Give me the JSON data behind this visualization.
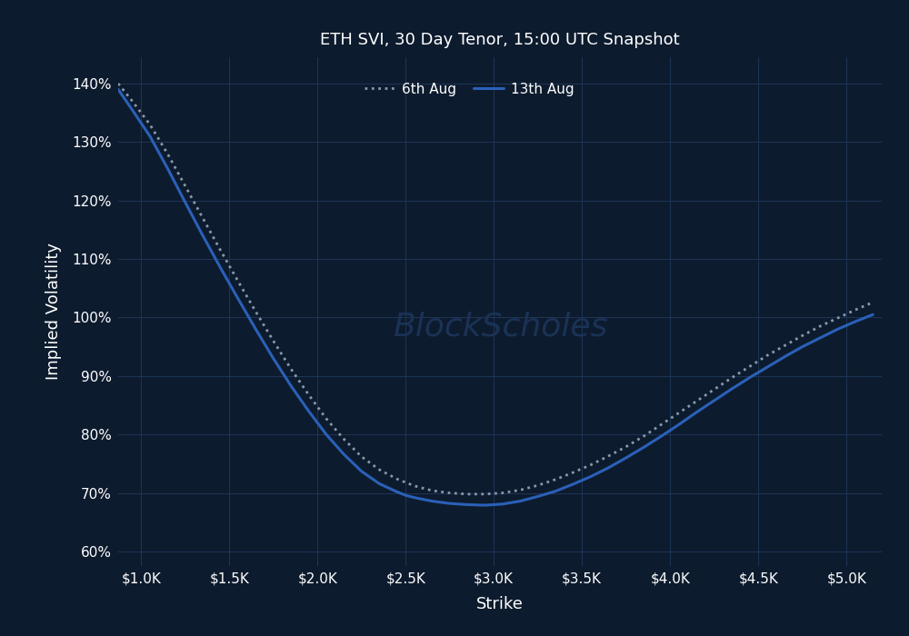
{
  "title": "ETH SVI, 30 Day Tenor, 15:00 UTC Snapshot",
  "xlabel": "Strike",
  "ylabel": "Implied Volatility",
  "background_color": "#0d1b2e",
  "grid_color": "#1e3558",
  "text_color": "#ffffff",
  "watermark": "BlockScholes",
  "x_ticks": [
    1000,
    1500,
    2000,
    2500,
    3000,
    3500,
    4000,
    4500,
    5000
  ],
  "x_tick_labels": [
    "$1.0K",
    "$1.5K",
    "$2.0K",
    "$2.5K",
    "$3.0K",
    "$3.5K",
    "$4.0K",
    "$4.5K",
    "$5.0K"
  ],
  "ylim": [
    0.575,
    1.445
  ],
  "y_ticks": [
    0.6,
    0.7,
    0.8,
    0.9,
    1.0,
    1.1,
    1.2,
    1.3,
    1.4
  ],
  "y_tick_labels": [
    "60%",
    "70%",
    "80%",
    "90%",
    "100%",
    "110%",
    "120%",
    "130%",
    "140%"
  ],
  "xlim": [
    870,
    5200
  ],
  "series": [
    {
      "label": "6th Aug",
      "color": "#8899aa",
      "linestyle": "dotted",
      "linewidth": 2.0,
      "x": [
        870,
        950,
        1050,
        1150,
        1250,
        1350,
        1450,
        1550,
        1650,
        1750,
        1850,
        1950,
        2050,
        2150,
        2250,
        2350,
        2450,
        2500,
        2550,
        2650,
        2750,
        2850,
        2950,
        3050,
        3150,
        3250,
        3350,
        3450,
        3550,
        3650,
        3750,
        3850,
        3950,
        4050,
        4150,
        4250,
        4350,
        4450,
        4550,
        4650,
        4750,
        4850,
        4950,
        5050,
        5150
      ],
      "y": [
        1.4,
        1.37,
        1.33,
        1.28,
        1.225,
        1.17,
        1.115,
        1.062,
        1.01,
        0.96,
        0.912,
        0.868,
        0.827,
        0.792,
        0.762,
        0.74,
        0.724,
        0.718,
        0.712,
        0.704,
        0.7,
        0.698,
        0.698,
        0.7,
        0.705,
        0.713,
        0.723,
        0.735,
        0.748,
        0.763,
        0.779,
        0.797,
        0.817,
        0.837,
        0.857,
        0.877,
        0.897,
        0.916,
        0.935,
        0.952,
        0.969,
        0.985,
        0.999,
        1.013,
        1.026
      ]
    },
    {
      "label": "13th Aug",
      "color": "#2a60b8",
      "linestyle": "solid",
      "linewidth": 2.2,
      "x": [
        870,
        950,
        1050,
        1150,
        1250,
        1350,
        1450,
        1550,
        1650,
        1750,
        1850,
        1950,
        2050,
        2150,
        2250,
        2350,
        2450,
        2500,
        2550,
        2650,
        2750,
        2850,
        2950,
        3050,
        3150,
        3250,
        3350,
        3450,
        3550,
        3650,
        3750,
        3850,
        3950,
        4050,
        4150,
        4250,
        4350,
        4450,
        4550,
        4650,
        4750,
        4850,
        4950,
        5050,
        5150
      ],
      "y": [
        1.39,
        1.355,
        1.31,
        1.255,
        1.197,
        1.14,
        1.085,
        1.032,
        0.98,
        0.93,
        0.883,
        0.84,
        0.8,
        0.766,
        0.737,
        0.716,
        0.702,
        0.696,
        0.692,
        0.686,
        0.682,
        0.68,
        0.679,
        0.681,
        0.686,
        0.694,
        0.703,
        0.715,
        0.728,
        0.743,
        0.76,
        0.778,
        0.797,
        0.817,
        0.838,
        0.858,
        0.878,
        0.897,
        0.915,
        0.933,
        0.95,
        0.965,
        0.98,
        0.993,
        1.005
      ]
    }
  ]
}
